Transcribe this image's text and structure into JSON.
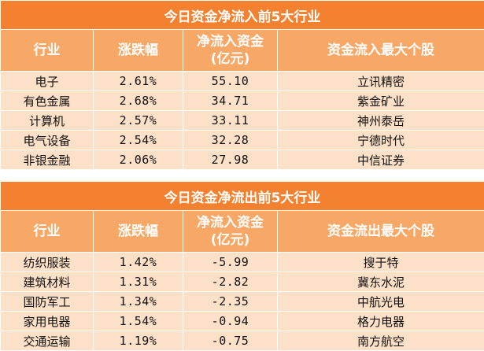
{
  "inflow": {
    "title": "今日资金净流入前5大行业",
    "headers": {
      "industry": "行业",
      "change": "涨跌幅",
      "net_flow_line1": "净流入资金",
      "net_flow_line2": "(亿元)",
      "top_stock": "资金流入最大个股"
    },
    "rows": [
      {
        "industry": "电子",
        "change": "2.61%",
        "net_flow": "55.10",
        "top_stock": "立讯精密"
      },
      {
        "industry": "有色金属",
        "change": "2.68%",
        "net_flow": "34.71",
        "top_stock": "紫金矿业"
      },
      {
        "industry": "计算机",
        "change": "2.57%",
        "net_flow": "33.11",
        "top_stock": "神州泰岳"
      },
      {
        "industry": "电气设备",
        "change": "2.54%",
        "net_flow": "32.28",
        "top_stock": "宁德时代"
      },
      {
        "industry": "非银金融",
        "change": "2.06%",
        "net_flow": "27.98",
        "top_stock": "中信证券"
      }
    ]
  },
  "outflow": {
    "title": "今日资金净流出前5大行业",
    "headers": {
      "industry": "行业",
      "change": "涨跌幅",
      "net_flow_line1": "净流入资金",
      "net_flow_line2": "(亿元)",
      "top_stock": "资金流出最大个股"
    },
    "rows": [
      {
        "industry": "纺织服装",
        "change": "1.42%",
        "net_flow": "-5.99",
        "top_stock": "搜于特"
      },
      {
        "industry": "建筑材料",
        "change": "1.31%",
        "net_flow": "-2.82",
        "top_stock": "冀东水泥"
      },
      {
        "industry": "国防军工",
        "change": "1.34%",
        "net_flow": "-2.35",
        "top_stock": "中航光电"
      },
      {
        "industry": "家用电器",
        "change": "1.54%",
        "net_flow": "-0.94",
        "top_stock": "格力电器"
      },
      {
        "industry": "交通运输",
        "change": "1.19%",
        "net_flow": "-0.75",
        "top_stock": "南方航空"
      }
    ]
  },
  "colors": {
    "title_bg": "#f4812f",
    "header_bg": "#f8a866",
    "row_bg": "#fde0c8"
  }
}
